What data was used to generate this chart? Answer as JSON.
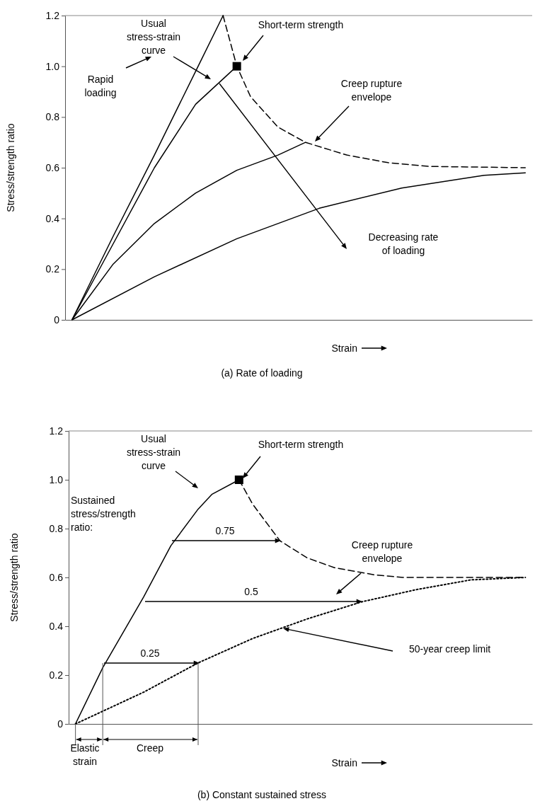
{
  "chart_data": [
    {
      "type": "line",
      "title": "(a) Rate of loading",
      "xlabel": "Strain",
      "ylabel": "Stress/strength ratio",
      "tick_labels": "y",
      "ylim": [
        0,
        1.2
      ],
      "yticks": [
        0,
        0.2,
        0.4,
        0.6,
        0.8,
        {
          "value": 1,
          "label": "1.0"
        },
        1.2
      ],
      "categories": [
        null,
        null,
        null,
        null,
        null,
        null,
        null,
        null,
        null,
        null,
        null,
        null,
        null,
        null,
        null,
        null,
        null,
        null,
        null,
        null,
        null,
        null,
        null,
        null,
        null,
        null,
        null,
        null,
        null,
        null,
        null,
        null,
        null,
        null
      ],
      "series": [
        {
          "type": "line",
          "color": "#000000",
          "line_style": "solid",
          "values": [
            0,
            null,
            null,
            0.33,
            null,
            null,
            0.65,
            null,
            null,
            0.98,
            null,
            1.2,
            null,
            null,
            null,
            null,
            null,
            null,
            null,
            null,
            null,
            null,
            null,
            null,
            null,
            null,
            null,
            null,
            null,
            null,
            null,
            null,
            null,
            null
          ]
        },
        {
          "type": "line",
          "color": "#000000",
          "line_style": "solid",
          "values": [
            0,
            null,
            null,
            0.3,
            null,
            null,
            0.6,
            null,
            null,
            0.85,
            null,
            null,
            1.0,
            null,
            null,
            null,
            null,
            null,
            null,
            null,
            null,
            null,
            null,
            null,
            null,
            null,
            null,
            null,
            null,
            null,
            null,
            null,
            null,
            null
          ]
        },
        {
          "type": "line",
          "color": "#000000",
          "line_style": "dashed",
          "values": [
            null,
            null,
            null,
            null,
            null,
            null,
            null,
            null,
            null,
            null,
            null,
            1.2,
            1.0,
            0.88,
            null,
            0.76,
            null,
            0.7,
            null,
            null,
            0.65,
            null,
            null,
            0.62,
            null,
            null,
            0.605,
            null,
            null,
            null,
            null,
            null,
            null,
            0.6
          ]
        },
        {
          "type": "line",
          "color": "#000000",
          "line_style": "solid",
          "values": [
            0,
            null,
            null,
            0.22,
            null,
            null,
            0.38,
            null,
            null,
            0.5,
            null,
            null,
            0.59,
            null,
            null,
            0.65,
            null,
            0.7,
            null,
            null,
            null,
            null,
            null,
            null,
            null,
            null,
            null,
            null,
            null,
            null,
            null,
            null,
            null,
            null
          ]
        },
        {
          "type": "line",
          "color": "#000000",
          "line_style": "solid",
          "values": [
            0,
            null,
            null,
            null,
            null,
            null,
            0.17,
            null,
            null,
            null,
            null,
            null,
            0.32,
            null,
            null,
            null,
            null,
            null,
            0.44,
            null,
            null,
            null,
            null,
            null,
            0.52,
            null,
            null,
            null,
            null,
            null,
            0.57,
            null,
            null,
            0.58
          ]
        },
        {
          "type": "scatter",
          "color": "#000000",
          "marker": "square",
          "values": [
            null,
            null,
            null,
            null,
            null,
            null,
            null,
            null,
            null,
            null,
            null,
            null,
            1.0,
            null,
            null,
            null,
            null,
            null,
            null,
            null,
            null,
            null,
            null,
            null,
            null,
            null,
            null,
            null,
            null,
            null,
            null,
            null,
            null,
            null
          ]
        }
      ],
      "annotations": [
        "Usual stress-strain curve",
        "Short-term strength",
        "Rapid loading",
        "Creep rupture envelope",
        "Decreasing rate of loading"
      ]
    },
    {
      "type": "line",
      "title": "(b) Constant sustained stress",
      "xlabel": "Strain",
      "ylabel": "Stress/strength ratio",
      "tick_labels": "y",
      "ylim": [
        0,
        1.2
      ],
      "yticks": [
        0,
        0.2,
        0.4,
        0.6,
        0.8,
        {
          "value": 1,
          "label": "1.0"
        },
        1.2
      ],
      "categories": [
        null,
        null,
        null,
        null,
        null,
        null,
        null,
        null,
        null,
        null,
        null,
        null,
        null,
        null,
        null,
        null,
        null,
        null,
        null,
        null,
        null,
        null,
        null,
        null,
        null,
        null,
        null,
        null,
        null,
        null,
        null,
        null,
        null,
        null
      ],
      "series": [
        {
          "type": "line",
          "color": "#000000",
          "line_style": "solid",
          "values": [
            0,
            null,
            0.23,
            null,
            null,
            0.52,
            null,
            0.73,
            null,
            0.88,
            0.94,
            null,
            1.0,
            null,
            null,
            null,
            null,
            null,
            null,
            null,
            null,
            null,
            null,
            null,
            null,
            null,
            null,
            null,
            null,
            null,
            null,
            null,
            null,
            null
          ]
        },
        {
          "type": "line",
          "color": "#000000",
          "line_style": "dashed",
          "values": [
            null,
            null,
            null,
            null,
            null,
            null,
            null,
            null,
            null,
            null,
            null,
            null,
            1.0,
            0.9,
            null,
            0.75,
            null,
            0.68,
            null,
            0.64,
            null,
            null,
            0.61,
            null,
            0.6,
            null,
            null,
            null,
            null,
            null,
            null,
            null,
            null,
            0.6
          ]
        },
        {
          "type": "line",
          "color": "#000000",
          "line_style": "dotted",
          "values": [
            0,
            null,
            null,
            null,
            null,
            0.13,
            null,
            null,
            null,
            0.25,
            null,
            null,
            null,
            0.35,
            null,
            null,
            null,
            0.43,
            null,
            null,
            null,
            0.5,
            null,
            null,
            null,
            0.55,
            null,
            null,
            null,
            0.59,
            null,
            null,
            null,
            0.6
          ]
        },
        {
          "type": "scatter",
          "color": "#000000",
          "marker": "square",
          "values": [
            null,
            null,
            null,
            null,
            null,
            null,
            null,
            null,
            null,
            null,
            null,
            null,
            1.0,
            null,
            null,
            null,
            null,
            null,
            null,
            null,
            null,
            null,
            null,
            null,
            null,
            null,
            null,
            null,
            null,
            null,
            null,
            null,
            null,
            null
          ]
        }
      ],
      "annotations": [
        "Usual stress-strain curve",
        "Short-term strength",
        "Sustained stress/strength ratio:",
        "Creep rupture envelope",
        "50-year creep limit",
        "0.75",
        "0.5",
        "0.25",
        "Elastic strain",
        "Creep"
      ]
    }
  ]
}
